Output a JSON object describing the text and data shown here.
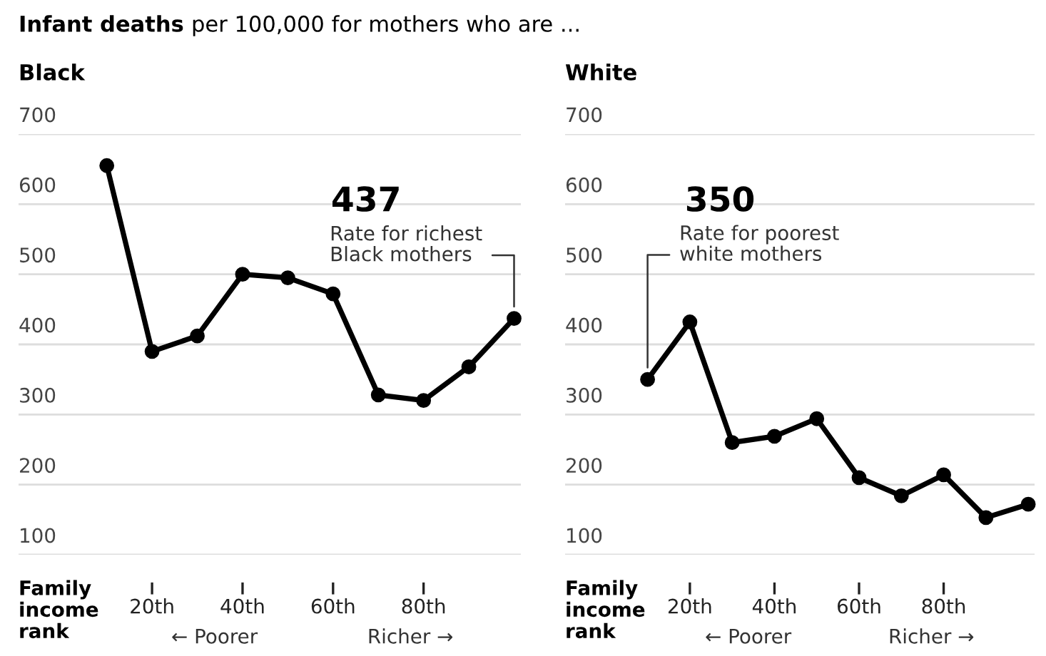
{
  "chart_data": [
    {
      "type": "line",
      "title": "Infant deaths per 100,000 for mothers who are ...",
      "subtitle": "Black",
      "xlabel": "Family\nincome\nrank",
      "x": [
        10,
        20,
        30,
        40,
        50,
        60,
        70,
        80,
        90,
        100
      ],
      "series": [
        {
          "color": "#000000",
          "values": [
            655,
            390,
            412,
            500,
            495,
            472,
            328,
            320,
            368,
            437
          ]
        }
      ],
      "xlim": [
        -9.5,
        101.5
      ],
      "xticks": [
        {
          "value": 20,
          "label": "20th"
        },
        {
          "value": 40,
          "label": "40th"
        },
        {
          "value": 60,
          "label": "60th"
        },
        {
          "value": 80,
          "label": "80th"
        }
      ],
      "ylim": [
        100,
        700
      ],
      "yticks": [
        100,
        200,
        300,
        400,
        500,
        600,
        700
      ],
      "grid": "y",
      "marker": "circle",
      "line_style": "solid",
      "annotations": [
        "437",
        {
          "text": "Rate for richest\nBlack mothers",
          "x": 100,
          "y": 437
        },
        "← Poorer",
        "Richer →"
      ]
    },
    {
      "type": "line",
      "subtitle": "White",
      "xlabel": "Family\nincome\nrank",
      "x": [
        10,
        20,
        30,
        40,
        50,
        60,
        70,
        80,
        90,
        100
      ],
      "series": [
        {
          "color": "#000000",
          "values": [
            350,
            432,
            260,
            269,
            294,
            210,
            184,
            214,
            153,
            172
          ]
        }
      ],
      "xlim": [
        -9.5,
        101.5
      ],
      "xticks": [
        {
          "value": 20,
          "label": "20th"
        },
        {
          "value": 40,
          "label": "40th"
        },
        {
          "value": 60,
          "label": "60th"
        },
        {
          "value": 80,
          "label": "80th"
        }
      ],
      "ylim": [
        100,
        700
      ],
      "yticks": [
        100,
        200,
        300,
        400,
        500,
        600,
        700
      ],
      "grid": "y",
      "marker": "circle",
      "line_style": "solid",
      "annotations": [
        "350",
        {
          "text": "Rate for poorest\nwhite mothers",
          "x": 10,
          "y": 350
        },
        "← Poorer",
        "Richer →"
      ]
    }
  ]
}
